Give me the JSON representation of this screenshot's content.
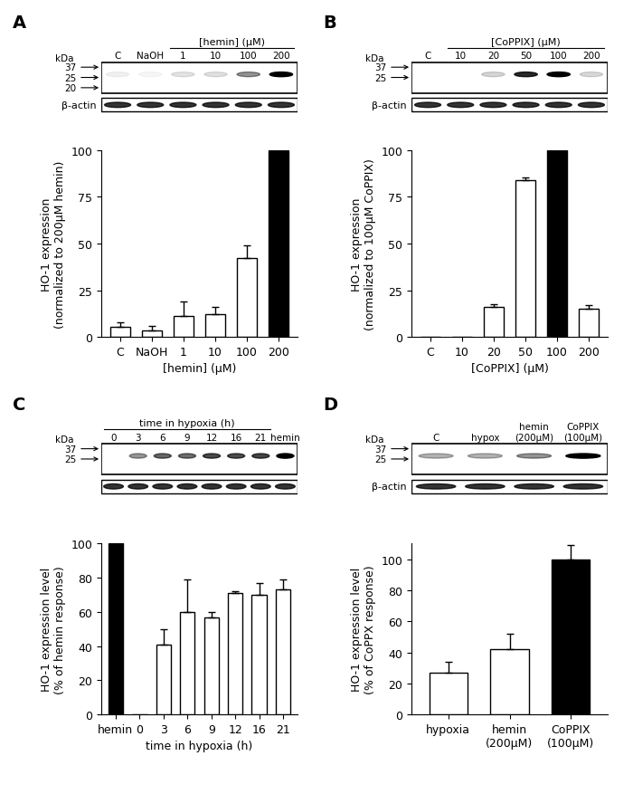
{
  "chart_data": [
    {
      "type": "bar",
      "panel": "A",
      "blot": {
        "kda_label": "kDa",
        "markers": [
          37,
          25,
          20
        ],
        "lanes": [
          "C",
          "NaOH",
          "1",
          "10",
          "100",
          "200"
        ],
        "header": "[hemin] (μM)",
        "header_over": [
          "1",
          "200"
        ],
        "loading_control": "β-actin"
      },
      "categories": [
        "C",
        "NaOH",
        "1",
        "10",
        "100",
        "200"
      ],
      "values": [
        5.5,
        3.5,
        11,
        12,
        42,
        100
      ],
      "errors": [
        2.5,
        2.5,
        8,
        4,
        7,
        null
      ],
      "colors": [
        "white",
        "white",
        "white",
        "white",
        "white",
        "black"
      ],
      "x_label": "[hemin] (μM)",
      "y_label": "HO-1 expression\n(normalized to 200μM hemin)",
      "ylim": [
        0,
        100
      ],
      "yticks": [
        0,
        25,
        50,
        75,
        100
      ]
    },
    {
      "type": "bar",
      "panel": "B",
      "blot": {
        "kda_label": "kDa",
        "markers": [
          37,
          25
        ],
        "lanes": [
          "C",
          "10",
          "20",
          "50",
          "100",
          "200"
        ],
        "header": "[CoPPIX] (μM)",
        "header_over": [
          "10",
          "200"
        ],
        "loading_control": "β-actin"
      },
      "categories": [
        "C",
        "10",
        "20",
        "50",
        "100",
        "200"
      ],
      "values": [
        0,
        0,
        16,
        84,
        100,
        15
      ],
      "errors": [
        null,
        null,
        1.5,
        1.5,
        null,
        2
      ],
      "colors": [
        "white",
        "white",
        "white",
        "white",
        "black",
        "white"
      ],
      "x_label": "[CoPPIX] (μM)",
      "y_label": "HO-1 expression\n(normalized to 100μM CoPPIX)",
      "ylim": [
        0,
        100
      ],
      "yticks": [
        0,
        25,
        50,
        75,
        100
      ]
    },
    {
      "type": "bar",
      "panel": "C",
      "blot": {
        "kda_label": "kDa",
        "markers": [
          37,
          25
        ],
        "lanes": [
          "0",
          "3",
          "6",
          "9",
          "12",
          "16",
          "21",
          "hemin"
        ],
        "header": "time in hypoxia (h)",
        "header_over": [
          "0",
          "21"
        ]
      },
      "categories": [
        "hemin",
        "0",
        "3",
        "6",
        "9",
        "12",
        "16",
        "21"
      ],
      "values": [
        100,
        0,
        41,
        60,
        57,
        71,
        70,
        73
      ],
      "errors": [
        null,
        null,
        9,
        19,
        3,
        1,
        7,
        6
      ],
      "colors": [
        "black",
        "white",
        "white",
        "white",
        "white",
        "white",
        "white",
        "white"
      ],
      "x_label": "time in hypoxia (h)",
      "y_label": "HO-1 expression level\n(% of hemin response)",
      "ylim": [
        0,
        100
      ],
      "yticks": [
        0,
        20,
        40,
        60,
        80,
        100
      ]
    },
    {
      "type": "bar",
      "panel": "D",
      "blot": {
        "kda_label": "kDa",
        "markers": [
          37,
          25
        ],
        "lanes": [
          "C",
          "hypox",
          "hemin\n(200μM)",
          "CoPPIX\n(100μM)"
        ],
        "loading_control": "β-actin"
      },
      "categories": [
        "hypoxia",
        "hemin\n(200μM)",
        "CoPPIX\n(100μM)"
      ],
      "values": [
        27,
        42,
        100
      ],
      "errors": [
        7,
        10,
        9
      ],
      "colors": [
        "white",
        "white",
        "black"
      ],
      "y_label": "HO-1 expression level\n(% of CoPPX response)",
      "ylim": [
        0,
        110
      ],
      "yticks": [
        0,
        20,
        40,
        60,
        80,
        100
      ]
    }
  ]
}
